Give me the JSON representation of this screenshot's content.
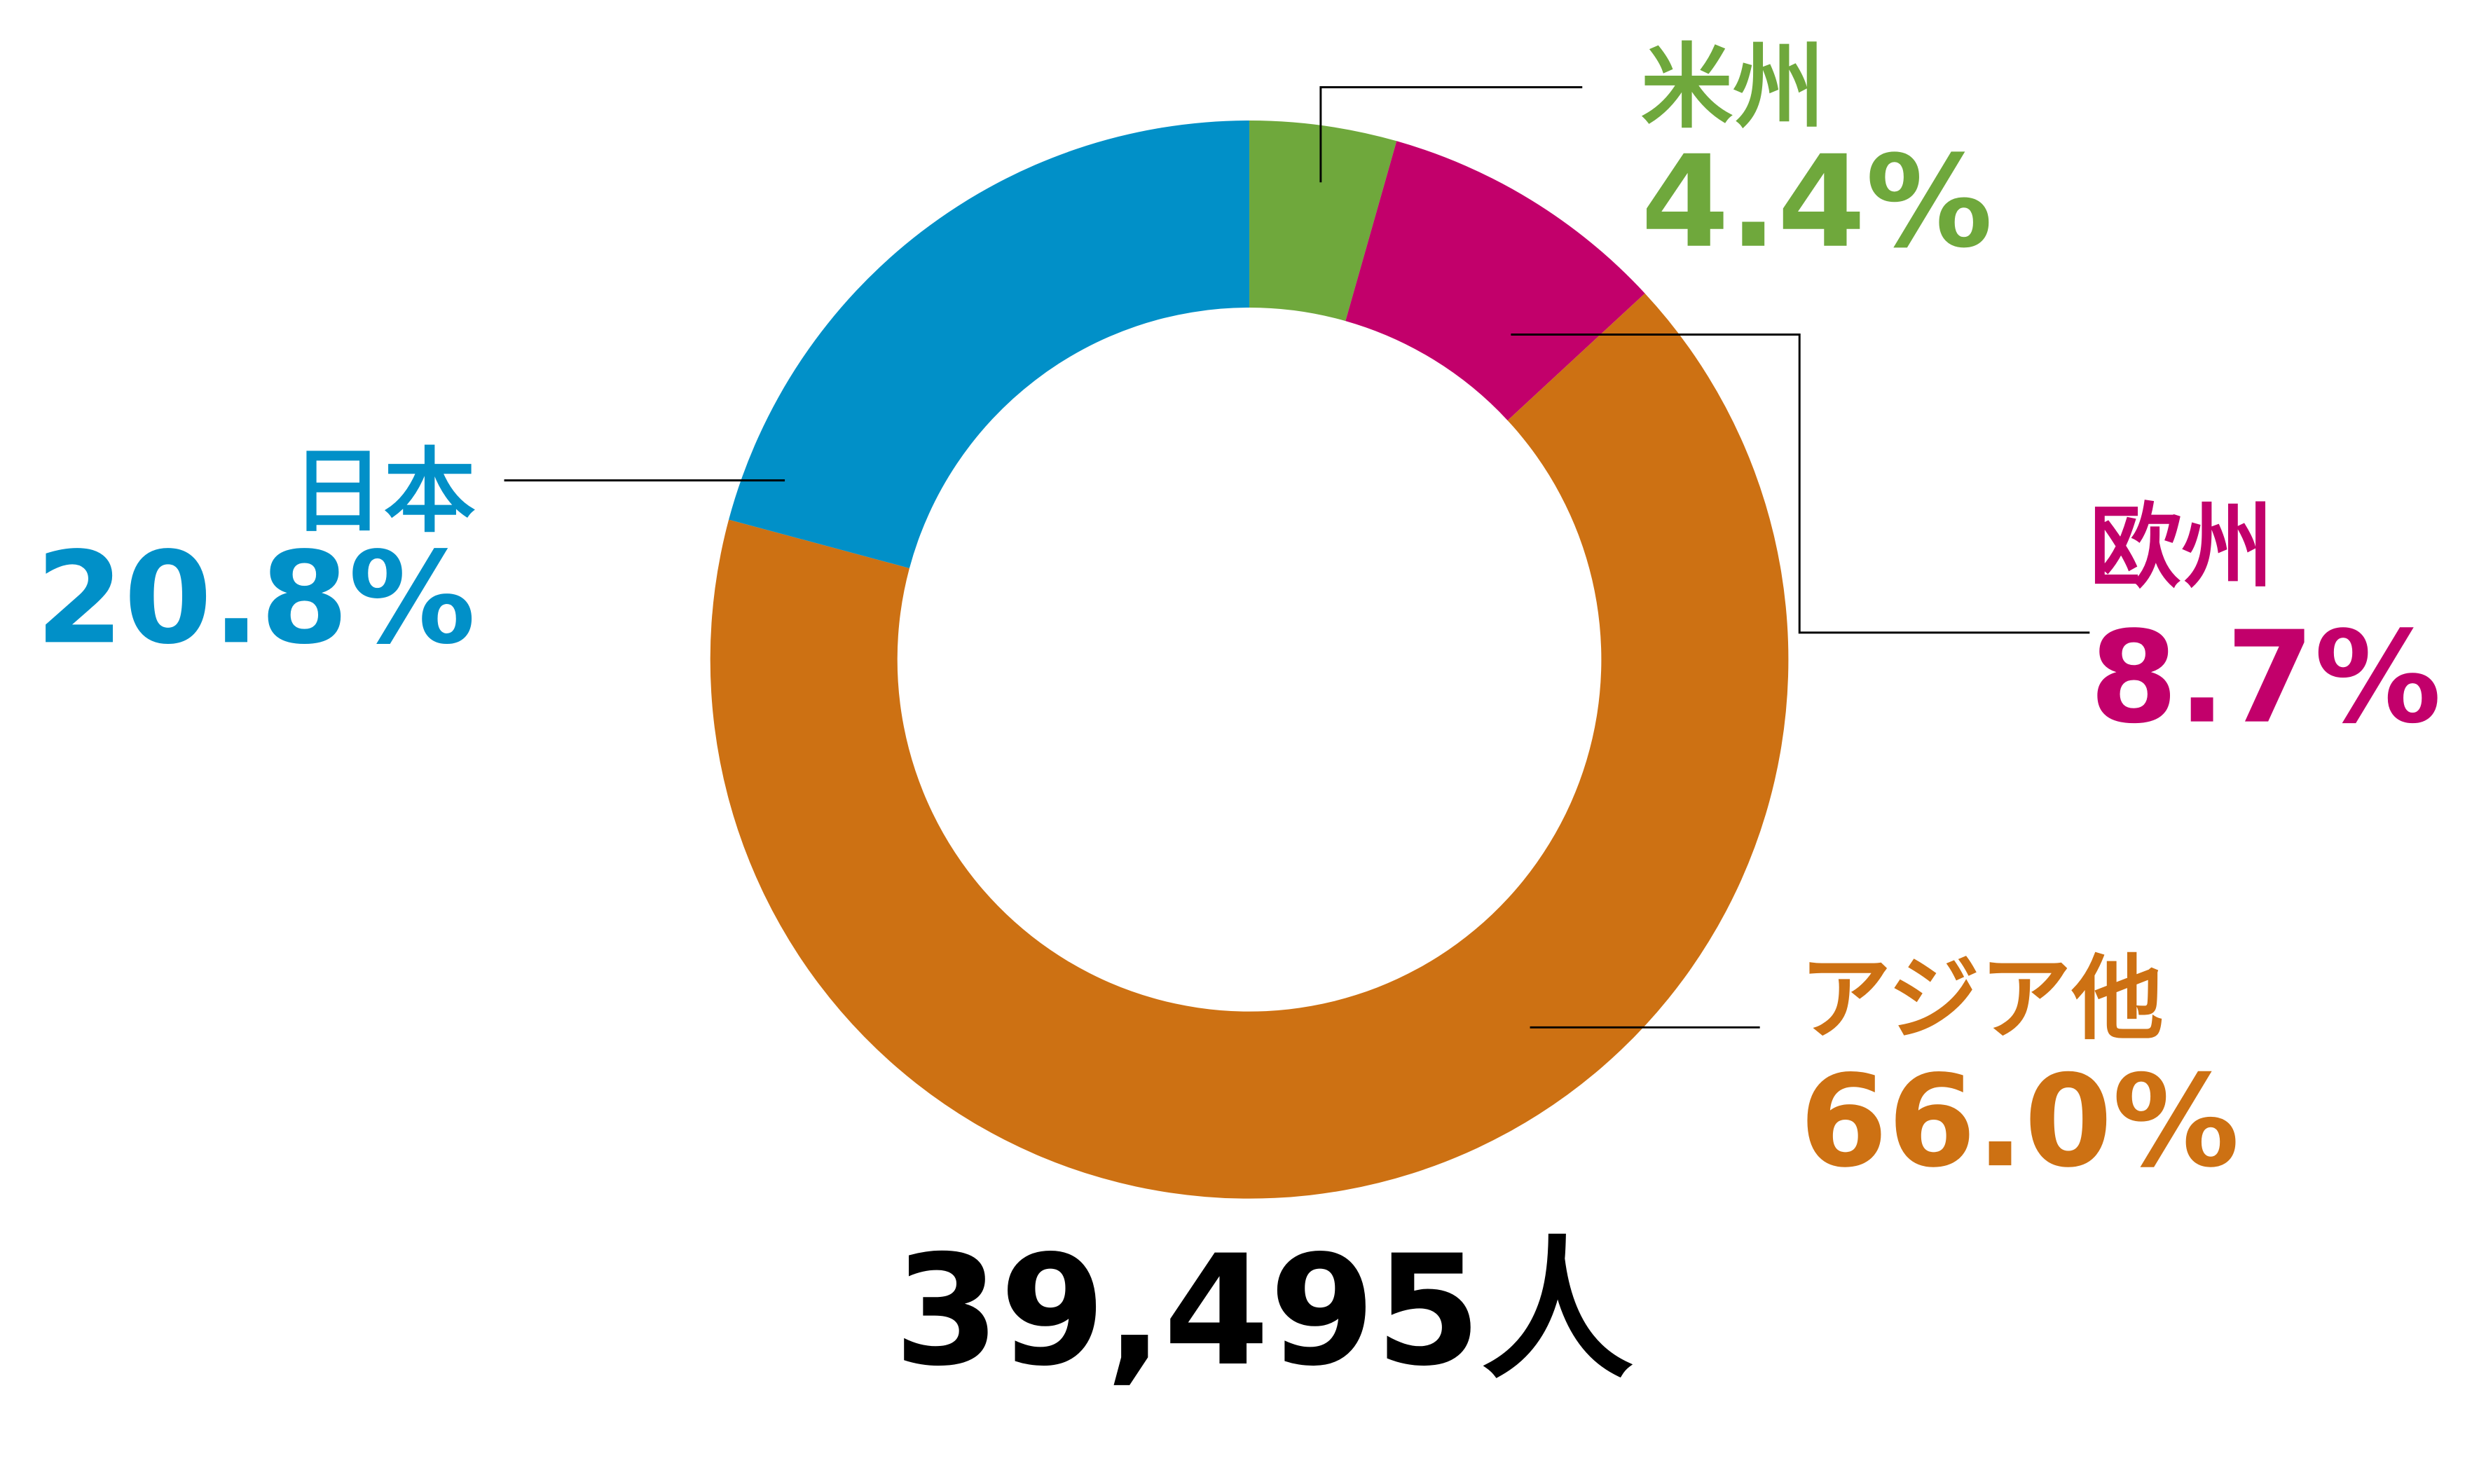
{
  "chart_data": {
    "type": "donut",
    "categories": [
      "米州",
      "欧州",
      "アジア他",
      "日本"
    ],
    "values": [
      4.4,
      8.7,
      66.0,
      20.8
    ],
    "value_labels": [
      "4.4%",
      "8.7%",
      "66.0%",
      "20.8%"
    ],
    "colors": [
      "#6fa83c",
      "#c2006b",
      "#cd7113",
      "#0190c8"
    ],
    "total": {
      "value": 39495,
      "label": "39,495人"
    }
  }
}
